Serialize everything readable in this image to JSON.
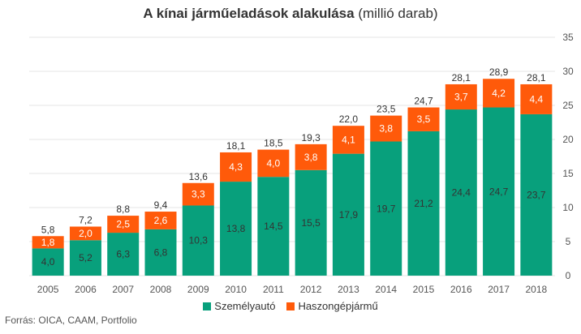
{
  "title_bold": "A kínai járműeladások alakulása",
  "title_rest": "(millió darab)",
  "source": "Forrás:  OICA, CAAM, Portfolio",
  "colors": {
    "passenger": "#08a07c",
    "commercial": "#ff5a0a",
    "grid": "#e6e6e6",
    "text": "#333333"
  },
  "chart_data": {
    "type": "bar",
    "stacked": true,
    "categories": [
      "2005",
      "2006",
      "2007",
      "2008",
      "2009",
      "2010",
      "2011",
      "2012",
      "2013",
      "2014",
      "2015",
      "2016",
      "2017",
      "2018"
    ],
    "series": [
      {
        "name": "Személyautó",
        "values": [
          4.0,
          5.2,
          6.3,
          6.8,
          10.3,
          13.8,
          14.5,
          15.5,
          17.9,
          19.7,
          21.2,
          24.4,
          24.7,
          23.7
        ],
        "labels": [
          "4,0",
          "5,2",
          "6,3",
          "6,8",
          "10,3",
          "13,8",
          "14,5",
          "15,5",
          "17,9",
          "19,7",
          "21,2",
          "24,4",
          "24,7",
          "23,7"
        ]
      },
      {
        "name": "Haszongépjármű",
        "values": [
          1.8,
          2.0,
          2.5,
          2.6,
          3.3,
          4.3,
          4.0,
          3.8,
          4.1,
          3.8,
          3.5,
          3.7,
          4.2,
          4.4
        ],
        "labels": [
          "1,8",
          "2,0",
          "2,5",
          "2,6",
          "3,3",
          "4,3",
          "4,0",
          "3,8",
          "4,1",
          "3,8",
          "3,5",
          "3,7",
          "4,2",
          "4,4"
        ]
      }
    ],
    "totals": [
      5.8,
      7.2,
      8.8,
      9.4,
      13.6,
      18.1,
      18.5,
      19.3,
      22.0,
      23.5,
      24.7,
      28.1,
      28.9,
      28.1
    ],
    "total_labels": [
      "5,8",
      "7,2",
      "8,8",
      "9,4",
      "13,6",
      "18,1",
      "18,5",
      "19,3",
      "22,0",
      "23,5",
      "24,7",
      "28,1",
      "28,9",
      "28,1"
    ],
    "yticks": [
      0,
      5,
      10,
      15,
      20,
      25,
      30,
      35
    ],
    "ylim": [
      0,
      35
    ],
    "yaxis_position": "right",
    "grid": true,
    "legend_position": "bottom"
  }
}
